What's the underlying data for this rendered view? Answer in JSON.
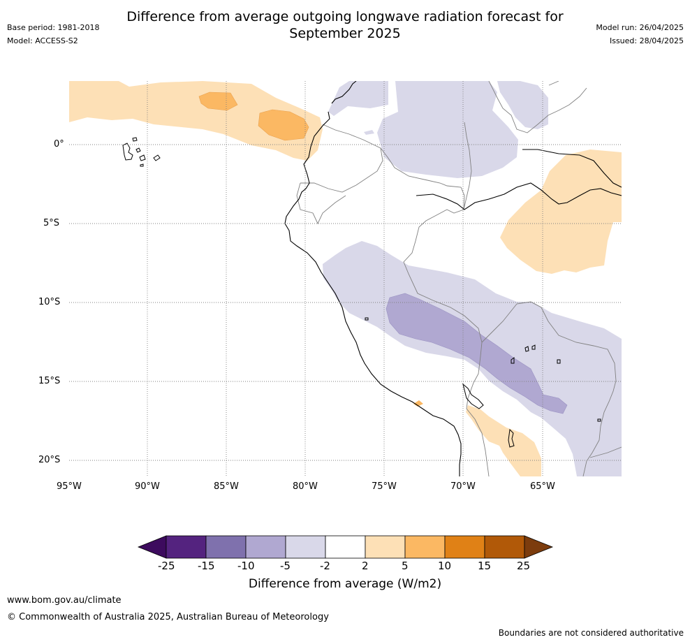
{
  "header": {
    "title_line1": "Difference from average outgoing longwave radiation forecast for",
    "title_line2": "September 2025",
    "base_period": "Base period: 1981-2018",
    "model": "Model: ACCESS-S2",
    "model_run": "Model run: 26/04/2025",
    "issued": "Issued: 28/04/2025"
  },
  "map": {
    "lat_labels": [
      "0°",
      "5°S",
      "10°S",
      "15°S",
      "20°S"
    ],
    "lon_labels": [
      "95°W",
      "90°W",
      "85°W",
      "80°W",
      "75°W",
      "70°W",
      "65°W"
    ]
  },
  "colorbar": {
    "ticks": [
      "-25",
      "-15",
      "-10",
      "-5",
      "-2",
      "2",
      "5",
      "10",
      "15",
      "25"
    ],
    "colors": [
      "#3d0b5e",
      "#54237f",
      "#7f71ad",
      "#b0a8d1",
      "#d9d8e9",
      "#ffffff",
      "#fde0b6",
      "#fbb863",
      "#e08116",
      "#b15908",
      "#7c3c0d"
    ],
    "label": "Difference from average (W/m2)"
  },
  "footer": {
    "url": "www.bom.gov.au/climate",
    "copyright": "© Commonwealth of Australia 2025, Australian Bureau of Meteorology",
    "disclaimer": "Boundaries are not considered authoritative"
  }
}
